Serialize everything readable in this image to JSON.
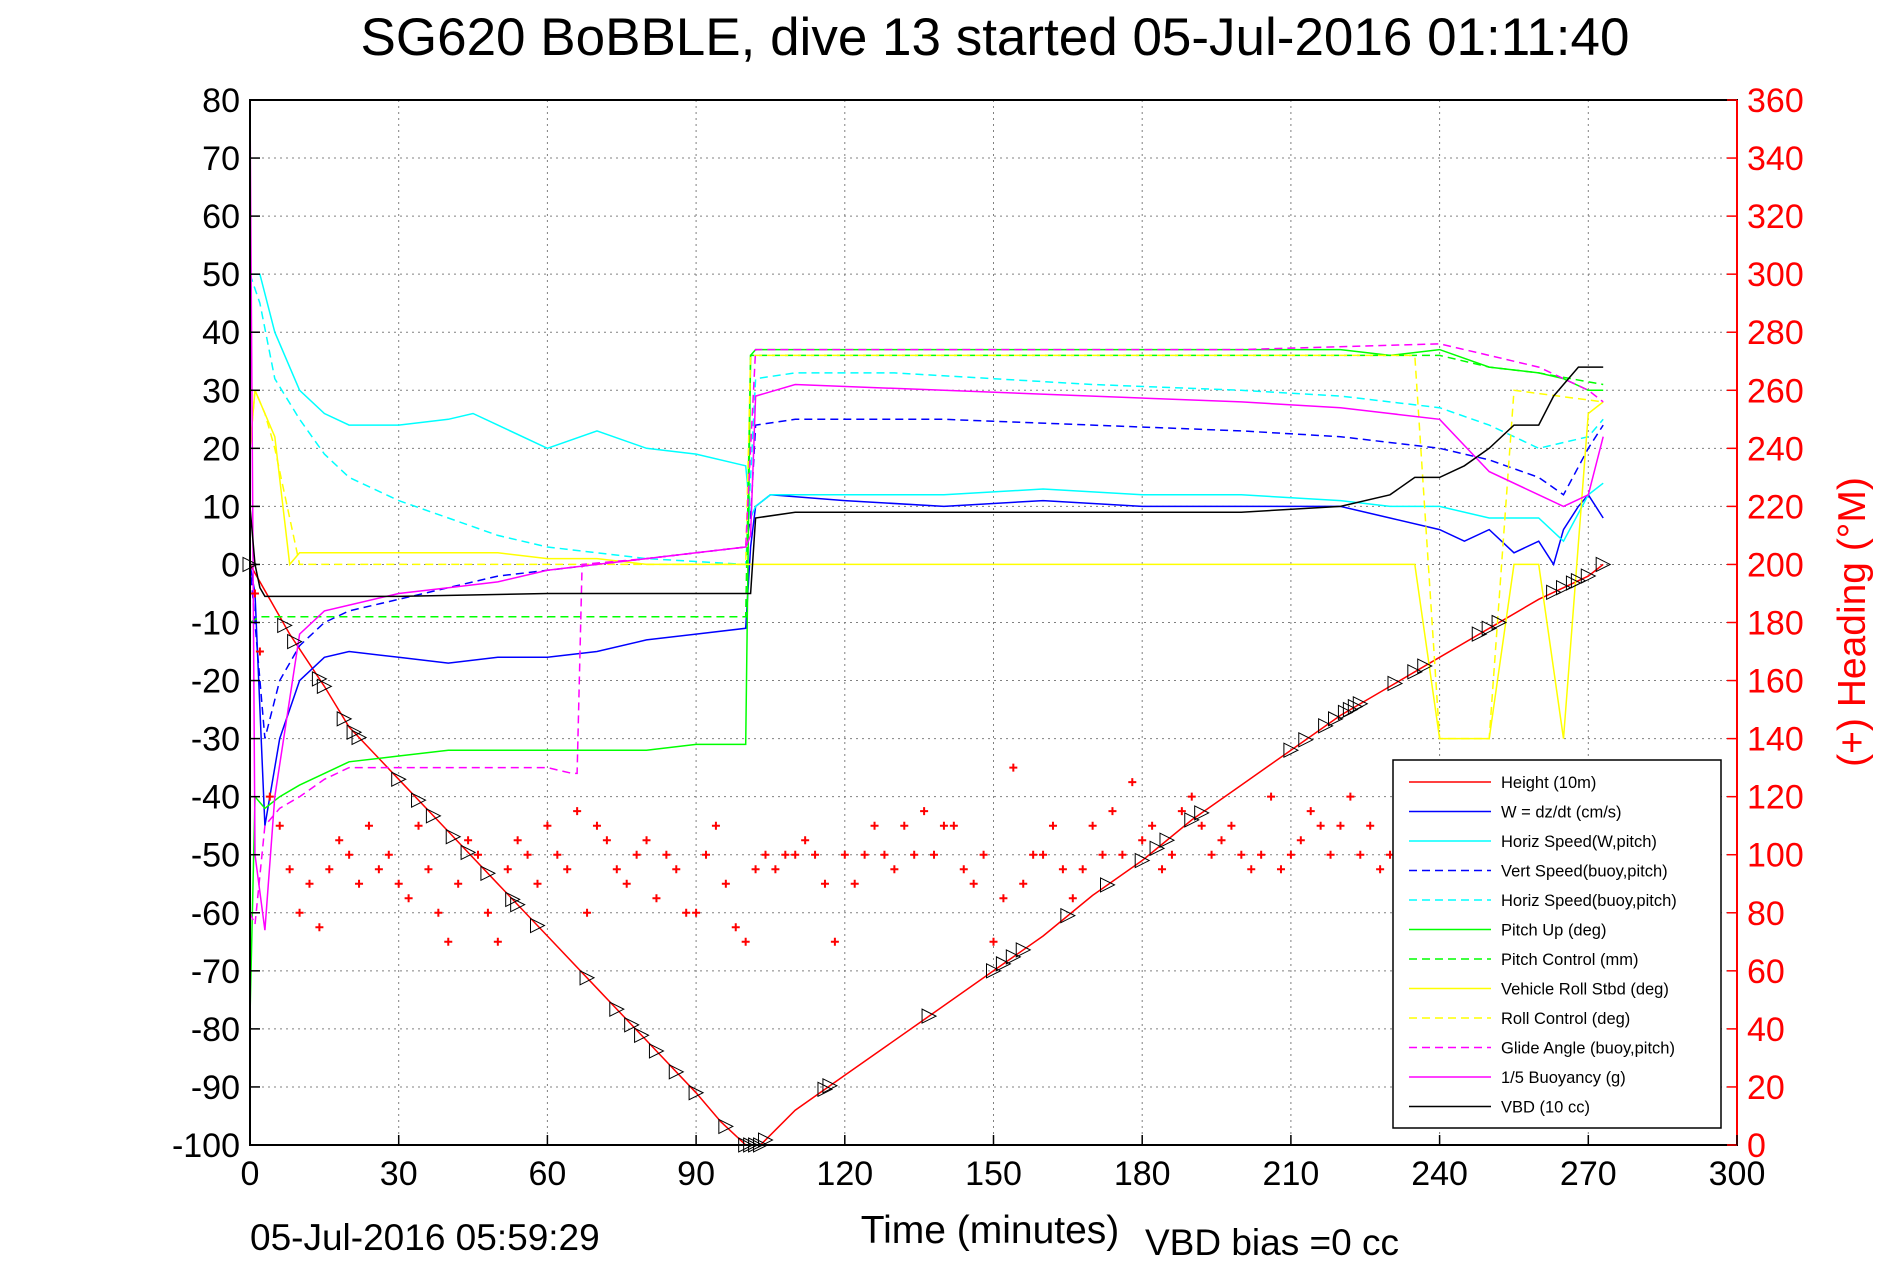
{
  "chart_data": {
    "type": "line",
    "title": "SG620 BoBBLE, dive 13 started 05-Jul-2016 01:11:40",
    "xlabel": "Time (minutes)",
    "ylabel_right": "(+) Heading (°M)",
    "footer_left": "05-Jul-2016 05:59:29",
    "footer_right": "VBD bias =0 cc",
    "xlim": [
      0,
      300
    ],
    "ylim_left": [
      -100,
      80
    ],
    "ylim_right": [
      0,
      360
    ],
    "x_ticks": [
      0,
      30,
      60,
      90,
      120,
      150,
      180,
      210,
      240,
      270,
      300
    ],
    "y_ticks_left": [
      80,
      70,
      60,
      50,
      40,
      30,
      20,
      10,
      0,
      -10,
      -20,
      -30,
      -40,
      -50,
      -60,
      -70,
      -80,
      -90,
      -100
    ],
    "y_ticks_right": [
      360,
      340,
      320,
      300,
      280,
      260,
      240,
      220,
      200,
      180,
      160,
      140,
      120,
      100,
      80,
      60,
      40,
      20,
      0
    ],
    "grid": true,
    "legend_position": "lower-right",
    "colors": {
      "right_axis": "#ff0000",
      "axes": "#000000",
      "grid": "#808080"
    },
    "series": [
      {
        "name": "Height (10m)",
        "color": "#ff0000",
        "style": "solid",
        "axis": "left",
        "x": [
          0,
          8,
          15,
          20,
          30,
          40,
          50,
          60,
          70,
          80,
          90,
          95,
          100,
          103,
          110,
          120,
          135,
          150,
          160,
          170,
          180,
          190,
          200,
          210,
          220,
          230,
          240,
          250,
          260,
          270,
          273
        ],
        "values": [
          0,
          -12,
          -21,
          -28,
          -37,
          -46,
          -55,
          -64,
          -73,
          -82,
          -91,
          -96,
          -100,
          -100,
          -94,
          -88,
          -79,
          -70,
          -64,
          -57,
          -51,
          -44,
          -38,
          -32,
          -26,
          -21,
          -16,
          -11,
          -6,
          -2,
          0
        ]
      },
      {
        "name": "W = dz/dt (cm/s)",
        "color": "#0000ff",
        "style": "solid",
        "axis": "left",
        "x": [
          0,
          1,
          3,
          6,
          10,
          15,
          20,
          30,
          40,
          50,
          60,
          70,
          80,
          90,
          100,
          101,
          102,
          105,
          120,
          140,
          160,
          180,
          200,
          220,
          230,
          240,
          245,
          250,
          255,
          260,
          263,
          265,
          268,
          270,
          273
        ],
        "values": [
          0,
          -5,
          -45,
          -30,
          -20,
          -16,
          -15,
          -16,
          -17,
          -16,
          -16,
          -15,
          -13,
          -12,
          -11,
          3,
          10,
          12,
          11,
          10,
          11,
          10,
          10,
          10,
          8,
          6,
          4,
          6,
          2,
          4,
          0,
          6,
          10,
          12,
          8
        ]
      },
      {
        "name": "Horiz Speed(W,pitch)",
        "color": "#00ffff",
        "style": "solid",
        "axis": "left",
        "x": [
          0,
          2,
          5,
          10,
          15,
          20,
          30,
          40,
          45,
          50,
          60,
          70,
          80,
          90,
          100,
          101,
          102,
          105,
          120,
          140,
          160,
          180,
          200,
          220,
          230,
          240,
          250,
          260,
          265,
          270,
          273
        ],
        "values": [
          50,
          50,
          40,
          30,
          26,
          24,
          24,
          25,
          26,
          24,
          20,
          23,
          20,
          19,
          17,
          8,
          10,
          12,
          12,
          12,
          13,
          12,
          12,
          11,
          10,
          10,
          8,
          8,
          4,
          12,
          14
        ]
      },
      {
        "name": "Vert Speed(buoy,pitch)",
        "color": "#0000ff",
        "style": "dashed",
        "axis": "left",
        "x": [
          0,
          3,
          6,
          10,
          15,
          20,
          30,
          40,
          50,
          60,
          70,
          80,
          90,
          100,
          101,
          102,
          110,
          140,
          170,
          200,
          220,
          240,
          250,
          260,
          265,
          270,
          273
        ],
        "values": [
          0,
          -30,
          -20,
          -14,
          -10,
          -8,
          -6,
          -4,
          -2,
          -1,
          0,
          1,
          2,
          3,
          8,
          24,
          25,
          25,
          24,
          23,
          22,
          20,
          18,
          15,
          12,
          20,
          24
        ]
      },
      {
        "name": "Horiz Speed(buoy,pitch)",
        "color": "#00ffff",
        "style": "dashed",
        "axis": "left",
        "x": [
          0,
          2,
          5,
          10,
          15,
          20,
          30,
          40,
          50,
          60,
          70,
          80,
          90,
          100,
          101,
          102,
          110,
          130,
          150,
          170,
          200,
          220,
          240,
          250,
          260,
          270,
          273
        ],
        "values": [
          50,
          45,
          32,
          25,
          19,
          15,
          11,
          8,
          5,
          3,
          2,
          1,
          0.5,
          0,
          15,
          32,
          33,
          33,
          32,
          31,
          30,
          29,
          27,
          24,
          20,
          22,
          25
        ]
      },
      {
        "name": "Pitch Up (deg)",
        "color": "#00ff00",
        "style": "solid",
        "axis": "left",
        "x": [
          0,
          1,
          3,
          6,
          10,
          15,
          20,
          30,
          40,
          50,
          60,
          70,
          80,
          90,
          100,
          101,
          102,
          110,
          140,
          170,
          200,
          220,
          230,
          240,
          250,
          260,
          265,
          270,
          273
        ],
        "values": [
          -78,
          -40,
          -42,
          -40,
          -38,
          -36,
          -34,
          -33,
          -32,
          -32,
          -32,
          -32,
          -32,
          -31,
          -31,
          36,
          37,
          37,
          37,
          37,
          37,
          37,
          36,
          37,
          34,
          33,
          32,
          30,
          30
        ]
      },
      {
        "name": "Pitch Control (mm)",
        "color": "#00ff00",
        "style": "dashed",
        "axis": "left",
        "x": [
          0,
          2,
          10,
          30,
          60,
          90,
          100,
          101,
          102,
          150,
          200,
          240,
          250,
          260,
          273
        ],
        "values": [
          -10,
          -9,
          -9,
          -9,
          -9,
          -9,
          -9,
          36,
          36,
          36,
          36,
          36,
          34,
          33,
          31
        ]
      },
      {
        "name": "Vehicle Roll Stbd (deg)",
        "color": "#ffff00",
        "style": "solid",
        "axis": "left",
        "x": [
          0,
          1,
          3,
          5,
          8,
          10,
          12,
          15,
          20,
          25,
          30,
          40,
          50,
          60,
          70,
          80,
          90,
          100,
          101,
          102,
          120,
          150,
          180,
          210,
          235,
          240,
          245,
          250,
          255,
          260,
          265,
          270,
          273
        ],
        "values": [
          20,
          30,
          26,
          22,
          0,
          2,
          2,
          2,
          2,
          2,
          2,
          2,
          2,
          1,
          1,
          0,
          0,
          0,
          0,
          0,
          0,
          0,
          0,
          0,
          0,
          -30,
          -30,
          -30,
          0,
          0,
          -30,
          26,
          28
        ]
      },
      {
        "name": "Roll Control (deg)",
        "color": "#ffff00",
        "style": "dashed",
        "axis": "left",
        "x": [
          0,
          1,
          3,
          5,
          10,
          30,
          60,
          90,
          100,
          101,
          102,
          150,
          200,
          235,
          240,
          250,
          255,
          273
        ],
        "values": [
          20,
          30,
          26,
          20,
          0,
          0,
          0,
          0,
          0,
          36,
          36,
          36,
          36,
          36,
          -30,
          -30,
          30,
          28
        ]
      },
      {
        "name": "Glide Angle (buoy,pitch)",
        "color": "#ff00ff",
        "style": "dashed",
        "axis": "left",
        "x": [
          0,
          1,
          3,
          6,
          10,
          15,
          20,
          30,
          40,
          50,
          60,
          65,
          66,
          67,
          80,
          100,
          101,
          102,
          110,
          150,
          200,
          240,
          250,
          260,
          265,
          270,
          273
        ],
        "values": [
          -60,
          -62,
          -45,
          -42,
          -40,
          -37,
          -35,
          -35,
          -35,
          -35,
          -35,
          -36,
          -36,
          0,
          1,
          3,
          20,
          37,
          37,
          37,
          37,
          38,
          36,
          34,
          32,
          30,
          28
        ]
      },
      {
        "name": "1/5 Buoyancy (g)",
        "color": "#ff00ff",
        "style": "solid",
        "axis": "left",
        "x": [
          0,
          1,
          3,
          5,
          10,
          15,
          20,
          30,
          40,
          50,
          60,
          70,
          80,
          90,
          100,
          101,
          102,
          110,
          140,
          170,
          200,
          220,
          230,
          240,
          250,
          260,
          265,
          270,
          273
        ],
        "values": [
          80,
          -50,
          -63,
          -40,
          -12,
          -8,
          -7,
          -5,
          -4,
          -3,
          -1,
          0,
          1,
          2,
          3,
          5,
          29,
          31,
          30,
          29,
          28,
          27,
          26,
          25,
          16,
          12,
          10,
          12,
          22
        ]
      },
      {
        "name": "VBD (10 cc)",
        "color": "#000000",
        "style": "solid",
        "axis": "left",
        "x": [
          0,
          1,
          2,
          3,
          30,
          60,
          90,
          100,
          101,
          102,
          110,
          140,
          170,
          200,
          220,
          230,
          235,
          240,
          245,
          250,
          255,
          260,
          263,
          265,
          268,
          270,
          273
        ],
        "values": [
          10,
          0,
          -4,
          -5.5,
          -5.5,
          -5,
          -5,
          -5,
          -5,
          8,
          9,
          9,
          9,
          9,
          10,
          12,
          15,
          15,
          17,
          20,
          24,
          24,
          29,
          31,
          34,
          34,
          34
        ]
      },
      {
        "name": "Heading",
        "color": "#ff0000",
        "style": "marker",
        "axis": "right",
        "x": [
          1,
          2,
          4,
          6,
          8,
          10,
          12,
          14,
          16,
          18,
          20,
          22,
          24,
          26,
          28,
          30,
          32,
          34,
          36,
          38,
          40,
          42,
          44,
          46,
          48,
          50,
          52,
          54,
          56,
          58,
          60,
          62,
          64,
          66,
          68,
          70,
          72,
          74,
          76,
          78,
          80,
          82,
          84,
          86,
          88,
          90,
          92,
          94,
          96,
          98,
          100,
          102,
          104,
          106,
          108,
          110,
          112,
          114,
          116,
          118,
          120,
          122,
          124,
          126,
          128,
          130,
          132,
          134,
          136,
          138,
          140,
          142,
          144,
          146,
          148,
          150,
          152,
          154,
          156,
          158,
          160,
          162,
          164,
          166,
          168,
          170,
          172,
          174,
          176,
          178,
          180,
          182,
          184,
          186,
          188,
          190,
          192,
          194,
          196,
          198,
          200,
          202,
          204,
          206,
          208,
          210,
          212,
          214,
          216,
          218,
          220,
          222,
          224,
          226,
          228,
          230,
          232
        ],
        "values": [
          190,
          170,
          120,
          110,
          95,
          80,
          90,
          75,
          95,
          105,
          100,
          90,
          110,
          95,
          100,
          90,
          85,
          110,
          95,
          80,
          70,
          90,
          105,
          100,
          80,
          70,
          95,
          105,
          100,
          90,
          110,
          100,
          95,
          115,
          80,
          110,
          105,
          95,
          90,
          100,
          105,
          85,
          100,
          95,
          80,
          80,
          100,
          110,
          90,
          75,
          70,
          95,
          100,
          95,
          100,
          100,
          105,
          100,
          90,
          70,
          100,
          90,
          100,
          110,
          100,
          95,
          110,
          100,
          115,
          100,
          110,
          110,
          95,
          90,
          100,
          70,
          85,
          130,
          90,
          100,
          100,
          110,
          95,
          85,
          95,
          110,
          100,
          115,
          100,
          125,
          105,
          110,
          95,
          100,
          115,
          120,
          110,
          100,
          105,
          110,
          100,
          95,
          100,
          120,
          95,
          100,
          105,
          115,
          110,
          100,
          110,
          120,
          100,
          110,
          95,
          100,
          95
        ]
      }
    ],
    "legend_entries": [
      "Height (10m)",
      "W = dz/dt (cm/s)",
      "Horiz Speed(W,pitch)",
      "Vert Speed(buoy,pitch)",
      "Horiz Speed(buoy,pitch)",
      "Pitch Up (deg)",
      "Pitch Control (mm)",
      "Vehicle Roll Stbd (deg)",
      "Roll Control (deg)",
      "Glide Angle (buoy,pitch)",
      "1/5 Buoyancy (g)",
      "VBD (10 cc)"
    ],
    "depth_markers_x": [
      0,
      7,
      9,
      14,
      15,
      19,
      21,
      22,
      30,
      34,
      37,
      41,
      44,
      48,
      53,
      54,
      58,
      68,
      74,
      77,
      79,
      82,
      86,
      90,
      96,
      100,
      101,
      102,
      103,
      104,
      116,
      117,
      137,
      150,
      152,
      154,
      156,
      165,
      173,
      180,
      183,
      185,
      190,
      192,
      210,
      213,
      217,
      219,
      221,
      222,
      223,
      224,
      231,
      235,
      237,
      248,
      250,
      252,
      263,
      265,
      267,
      268,
      270,
      273
    ]
  }
}
